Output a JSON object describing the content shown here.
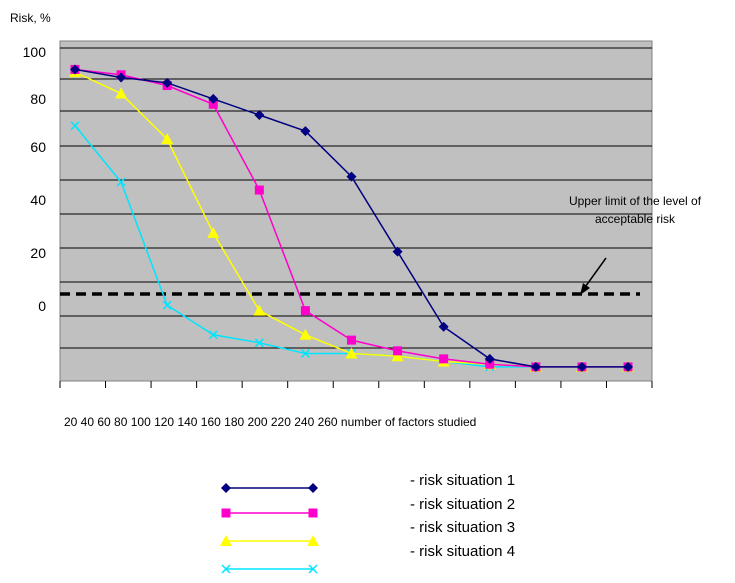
{
  "chart_data": {
    "type": "line",
    "ylabel": "Risk, %",
    "xlabel": "20 40 60 80 100 120 140 160 180 200 220 240 260 number of factors studied",
    "y_tick_labels": [
      "100",
      "80",
      "60",
      "40",
      "20",
      "0"
    ],
    "annotation": {
      "line1": "Upper limit of the level of",
      "line2": "acceptable risk"
    },
    "threshold_label": "dashed line: upper limit of acceptable risk",
    "grid": true,
    "plot_background": "#c0c0c0",
    "point_count": 13,
    "series": [
      {
        "name": "- risk situation 1",
        "color": "#000080",
        "marker": "diamond",
        "values": [
          92,
          89,
          87,
          81,
          75,
          69,
          52,
          24,
          -4,
          -16,
          -19,
          -19,
          -19
        ]
      },
      {
        "name": "- risk situation 2",
        "color": "#ff00cc",
        "marker": "square",
        "values": [
          92,
          90,
          86,
          79,
          47,
          2,
          -9,
          -13,
          -16,
          -18,
          -19,
          -19,
          -19
        ]
      },
      {
        "name": "- risk situation 3",
        "color": "#ffff00",
        "marker": "triangle",
        "values": [
          91,
          83,
          66,
          31,
          2,
          -7,
          -14,
          -15,
          -17,
          -18,
          -19,
          -19,
          -19
        ]
      },
      {
        "name": "- risk situation 4",
        "color": "#00e5ff",
        "marker": "x",
        "values": [
          71,
          50,
          4,
          -7,
          -10,
          -14,
          -14,
          -15,
          -17,
          -19,
          -19,
          -19,
          -19
        ]
      }
    ]
  }
}
